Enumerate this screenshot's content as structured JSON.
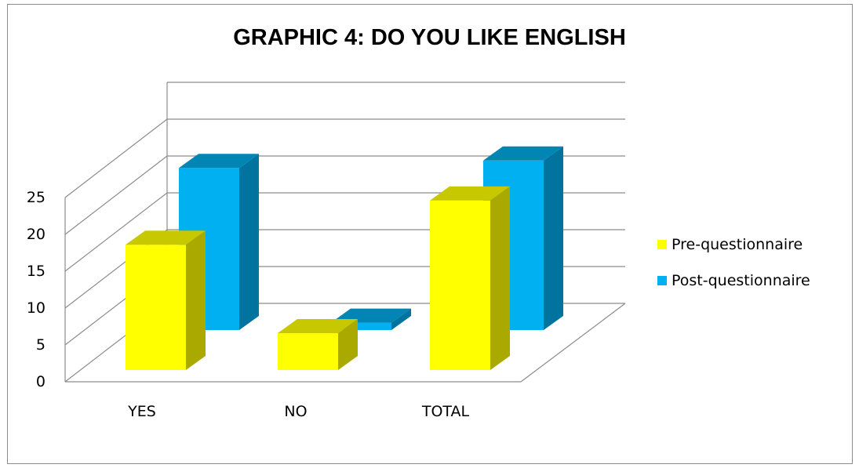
{
  "chart_data": {
    "type": "bar",
    "title": "GRAPHIC 4: DO YOU LIKE ENGLISH",
    "categories": [
      "YES",
      "NO",
      "TOTAL"
    ],
    "series": [
      {
        "name": "Pre-questionnaire",
        "values": [
          17,
          5,
          23
        ],
        "color": "#ffff00",
        "side_color": "#a9a900",
        "top_color": "#c8c800"
      },
      {
        "name": "Post-questionnaire",
        "values": [
          22,
          1,
          23
        ],
        "color": "#00b0f0",
        "side_color": "#00749e",
        "top_color": "#0085b4"
      }
    ],
    "yticks": [
      "0",
      "5",
      "10",
      "15",
      "20",
      "25"
    ],
    "ylim": [
      0,
      25
    ],
    "grid": true,
    "legend_position": "right",
    "style": "3d-clustered-column"
  }
}
